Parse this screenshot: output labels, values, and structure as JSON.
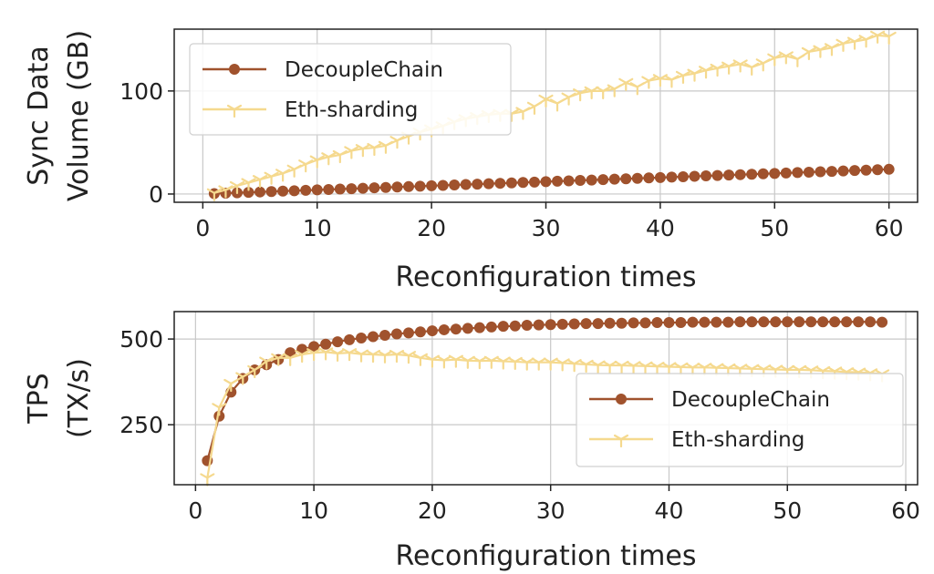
{
  "colors": {
    "decouple": "#a0522d",
    "eth": "#f5d98e",
    "grid": "#c8c8c8",
    "axis": "#222222"
  },
  "chart_data": [
    {
      "type": "line",
      "xlabel": "Reconfiguration times",
      "ylabel": [
        "Sync Data",
        "Volume (GB)"
      ],
      "xlim": [
        -2.5,
        62.5
      ],
      "ylim": [
        -8,
        160
      ],
      "xticks": [
        0,
        10,
        20,
        30,
        40,
        50,
        60
      ],
      "yticks": [
        0,
        100
      ],
      "grid": true,
      "legend": "top-left",
      "series": [
        {
          "name": "DecoupleChain",
          "marker": "circle",
          "color": "#a0522d",
          "x": [
            1,
            2,
            3,
            4,
            5,
            6,
            7,
            8,
            9,
            10,
            11,
            12,
            13,
            14,
            15,
            16,
            17,
            18,
            19,
            20,
            21,
            22,
            23,
            24,
            25,
            26,
            27,
            28,
            29,
            30,
            31,
            32,
            33,
            34,
            35,
            36,
            37,
            38,
            39,
            40,
            41,
            42,
            43,
            44,
            45,
            46,
            47,
            48,
            49,
            50,
            51,
            52,
            53,
            54,
            55,
            56,
            57,
            58,
            59,
            60
          ],
          "y": [
            0.4,
            0.8,
            1.2,
            1.6,
            2,
            2.4,
            2.8,
            3.2,
            3.6,
            4,
            4.4,
            4.8,
            5.2,
            5.6,
            6,
            6.4,
            6.8,
            7.2,
            7.6,
            8,
            8.4,
            8.8,
            9.2,
            9.6,
            10,
            10.4,
            10.8,
            11.2,
            11.6,
            12,
            12.4,
            12.8,
            13.2,
            13.6,
            14,
            14.4,
            14.8,
            15.2,
            15.6,
            16,
            16.4,
            16.8,
            17.2,
            17.6,
            18,
            18.4,
            18.8,
            19.2,
            19.6,
            20,
            20.4,
            20.8,
            21.2,
            21.6,
            22,
            22.4,
            22.8,
            23.2,
            23.6,
            24
          ]
        },
        {
          "name": "Eth-sharding",
          "marker": "tri_down",
          "color": "#f5d98e",
          "x": [
            1,
            2,
            3,
            4,
            5,
            6,
            7,
            8,
            9,
            10,
            11,
            12,
            13,
            14,
            15,
            16,
            17,
            18,
            19,
            20,
            21,
            22,
            23,
            24,
            25,
            26,
            27,
            28,
            29,
            30,
            31,
            32,
            33,
            34,
            35,
            36,
            37,
            38,
            39,
            40,
            41,
            42,
            43,
            44,
            45,
            46,
            47,
            48,
            49,
            50,
            51,
            52,
            53,
            54,
            55,
            56,
            57,
            58,
            59,
            60
          ],
          "y": [
            1,
            4,
            8,
            11,
            14,
            17,
            20,
            24,
            29,
            33,
            36,
            38,
            42,
            44,
            45,
            47,
            52,
            56,
            60,
            63,
            66,
            70,
            73,
            75,
            77,
            78,
            78,
            80,
            85,
            92,
            88,
            94,
            98,
            100,
            100,
            102,
            108,
            104,
            110,
            112,
            111,
            115,
            117,
            120,
            122,
            124,
            126,
            123,
            127,
            132,
            134,
            131,
            138,
            140,
            142,
            146,
            148,
            150,
            154,
            153
          ]
        }
      ]
    },
    {
      "type": "line",
      "xlabel": "Reconfiguration times",
      "ylabel": [
        "TPS",
        "(TX/s)"
      ],
      "xlim": [
        -1.8,
        61
      ],
      "ylim": [
        75,
        580
      ],
      "xticks": [
        0,
        10,
        20,
        30,
        40,
        50,
        60
      ],
      "yticks": [
        250,
        500
      ],
      "grid": true,
      "legend": "lower-right",
      "series": [
        {
          "name": "DecoupleChain",
          "marker": "circle",
          "color": "#a0522d",
          "x": [
            1,
            2,
            3,
            4,
            5,
            6,
            7,
            8,
            9,
            10,
            11,
            12,
            13,
            14,
            15,
            16,
            17,
            18,
            19,
            20,
            21,
            22,
            23,
            24,
            25,
            26,
            27,
            28,
            29,
            30,
            31,
            32,
            33,
            34,
            35,
            36,
            37,
            38,
            39,
            40,
            41,
            42,
            43,
            44,
            45,
            46,
            47,
            48,
            49,
            50,
            51,
            52,
            53,
            54,
            55,
            56,
            57,
            58
          ],
          "y": [
            145,
            275,
            345,
            385,
            410,
            425,
            440,
            460,
            470,
            478,
            485,
            492,
            498,
            503,
            507,
            511,
            515,
            518,
            521,
            524,
            527,
            529,
            531,
            533,
            535,
            537,
            538,
            540,
            541,
            542,
            543,
            544,
            545,
            545,
            546,
            546,
            547,
            547,
            548,
            548,
            548,
            549,
            549,
            549,
            549,
            550,
            550,
            550,
            550,
            550,
            550,
            550,
            550,
            550,
            550,
            550,
            550,
            549
          ]
        },
        {
          "name": "Eth-sharding",
          "marker": "tri_down",
          "color": "#f5d98e",
          "x": [
            1,
            2,
            3,
            4,
            5,
            6,
            7,
            8,
            9,
            10,
            11,
            12,
            13,
            14,
            15,
            16,
            17,
            18,
            19,
            20,
            21,
            22,
            23,
            24,
            25,
            26,
            27,
            28,
            29,
            30,
            31,
            32,
            33,
            34,
            35,
            36,
            37,
            38,
            39,
            40,
            41,
            42,
            43,
            44,
            45,
            46,
            47,
            48,
            49,
            50,
            51,
            52,
            53,
            54,
            55,
            56,
            57,
            58
          ],
          "y": [
            95,
            300,
            370,
            390,
            410,
            435,
            445,
            445,
            455,
            460,
            462,
            458,
            460,
            456,
            455,
            453,
            455,
            452,
            445,
            440,
            438,
            440,
            437,
            436,
            437,
            435,
            434,
            432,
            432,
            432,
            430,
            428,
            426,
            424,
            423,
            423,
            422,
            421,
            420,
            419,
            418,
            417,
            417,
            416,
            415,
            414,
            413,
            412,
            411,
            410,
            410,
            409,
            407,
            406,
            404,
            403,
            401,
            398
          ]
        }
      ]
    }
  ]
}
